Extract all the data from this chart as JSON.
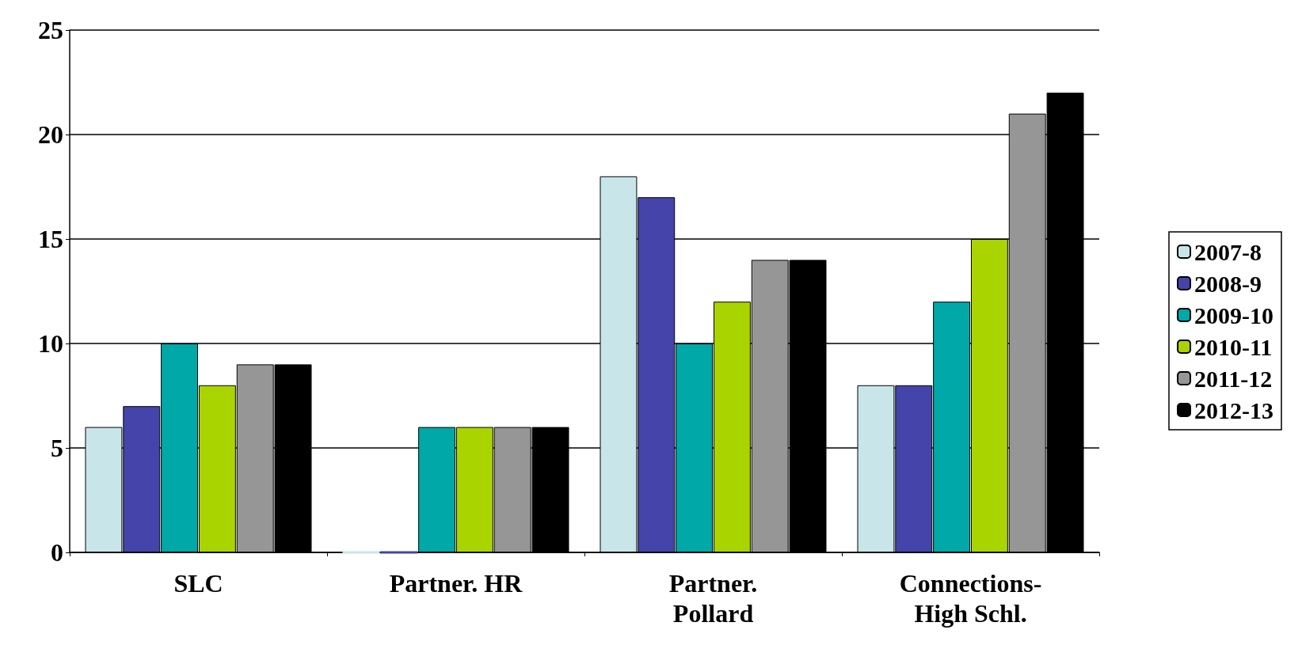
{
  "chart_data": {
    "type": "bar",
    "categories": [
      "SLC",
      "Partner. HR",
      "Partner.\nPollard",
      "Connections-\nHigh Schl."
    ],
    "series": [
      {
        "name": "2007-8",
        "color": "#c8e6ea",
        "values": [
          6,
          0,
          18,
          8
        ]
      },
      {
        "name": "2008-9",
        "color": "#4444aa",
        "values": [
          7,
          0,
          17,
          8
        ]
      },
      {
        "name": "2009-10",
        "color": "#00a8a8",
        "values": [
          10,
          6,
          10,
          12
        ]
      },
      {
        "name": "2010-11",
        "color": "#aad400",
        "values": [
          8,
          6,
          12,
          15
        ]
      },
      {
        "name": "2011-12",
        "color": "#969696",
        "values": [
          9,
          6,
          14,
          21
        ]
      },
      {
        "name": "2012-13",
        "color": "#000000",
        "values": [
          9,
          6,
          14,
          22
        ]
      }
    ],
    "ylim": [
      0,
      25
    ],
    "yticks": [
      0,
      5,
      10,
      15,
      20,
      25
    ],
    "grid": "y",
    "legend": "right"
  }
}
